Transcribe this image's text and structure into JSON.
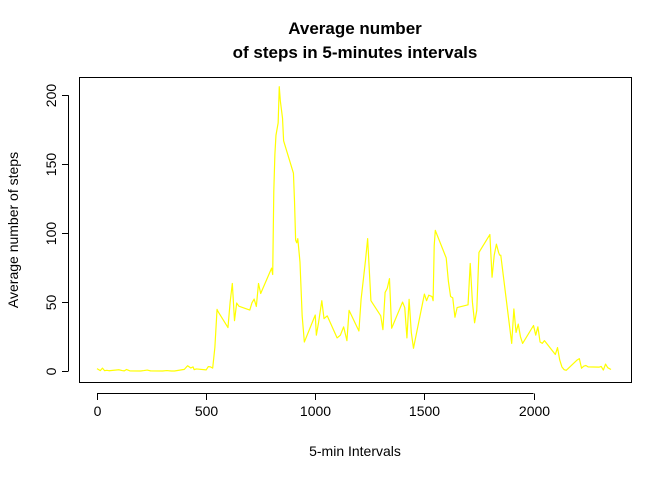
{
  "chart_data": {
    "type": "line",
    "title_line1": "Average number",
    "title_line2": "of steps in 5-minutes intervals",
    "xlabel": "5-min Intervals",
    "ylabel": "Average number of steps",
    "xlim": [
      0,
      2355
    ],
    "ylim": [
      0,
      206
    ],
    "x_ticks": [
      0,
      500,
      1000,
      1500,
      2000
    ],
    "x_tick_labels": [
      "0",
      "500",
      "1000",
      "1500",
      "2000"
    ],
    "y_ticks": [
      0,
      50,
      100,
      150,
      200
    ],
    "y_tick_labels": [
      "0",
      "50",
      "100",
      "150",
      "200"
    ],
    "grid": false,
    "series": [
      {
        "color": "#ffff00",
        "x": [
          0,
          15,
          25,
          35,
          45,
          55,
          100,
          115,
          125,
          135,
          150,
          200,
          215,
          230,
          245,
          300,
          320,
          340,
          355,
          400,
          415,
          430,
          440,
          445,
          455,
          500,
          510,
          520,
          530,
          540,
          550,
          555,
          600,
          610,
          620,
          630,
          640,
          650,
          700,
          710,
          720,
          730,
          740,
          750,
          800,
          805,
          810,
          815,
          820,
          830,
          835,
          840,
          850,
          855,
          900,
          905,
          910,
          915,
          920,
          930,
          940,
          950,
          1000,
          1005,
          1015,
          1030,
          1040,
          1055,
          1100,
          1115,
          1130,
          1145,
          1155,
          1200,
          1210,
          1215,
          1220,
          1230,
          1240,
          1255,
          1300,
          1310,
          1320,
          1330,
          1340,
          1350,
          1400,
          1410,
          1420,
          1430,
          1440,
          1450,
          1500,
          1510,
          1520,
          1535,
          1540,
          1545,
          1550,
          1600,
          1610,
          1620,
          1630,
          1640,
          1650,
          1700,
          1710,
          1720,
          1730,
          1740,
          1750,
          1800,
          1810,
          1820,
          1830,
          1840,
          1845,
          1850,
          1900,
          1910,
          1920,
          1930,
          1940,
          1950,
          2000,
          2010,
          2020,
          2030,
          2040,
          2050,
          2100,
          2110,
          2120,
          2130,
          2140,
          2150,
          2200,
          2210,
          2220,
          2230,
          2240,
          2250,
          2300,
          2310,
          2320,
          2330,
          2340,
          2355
        ],
        "y": [
          1.7,
          0.3,
          2.1,
          0.2,
          0.5,
          0.2,
          0.9,
          0.3,
          0.1,
          1.1,
          0.1,
          0.0,
          0.3,
          0.7,
          0.1,
          0.0,
          0.3,
          0.0,
          0.0,
          1.2,
          3.8,
          2.2,
          3.0,
          1.0,
          1.5,
          0.8,
          3.2,
          3.0,
          2.1,
          17.0,
          44.7,
          43.0,
          31.5,
          50.0,
          63.5,
          36.5,
          49.3,
          47.0,
          44.2,
          49.5,
          52.2,
          46.8,
          63.5,
          56.2,
          74.6,
          70.0,
          130.0,
          157.0,
          171.0,
          180.0,
          206.2,
          195.9,
          183.4,
          167.0,
          143.5,
          123.0,
          95.0,
          93.0,
          96.0,
          79.0,
          40.0,
          21.0,
          40.6,
          26.0,
          35.0,
          51.0,
          38.0,
          40.0,
          24.0,
          26.0,
          32.0,
          22.0,
          44.0,
          29.0,
          52.0,
          59.0,
          66.0,
          80.0,
          96.0,
          51.0,
          40.0,
          30.0,
          57.0,
          60.0,
          67.0,
          31.0,
          50.0,
          46.0,
          24.0,
          52.0,
          28.0,
          16.5,
          55.8,
          51.0,
          55.0,
          54.0,
          51.0,
          91.0,
          102.0,
          82.0,
          65.0,
          54.0,
          53.0,
          39.0,
          46.0,
          48.0,
          78.0,
          50.0,
          35.0,
          44.0,
          86.0,
          99.0,
          68.0,
          84.0,
          92.0,
          86.0,
          84.0,
          84.0,
          20.0,
          45.0,
          28.0,
          34.0,
          25.0,
          20.0,
          33.0,
          26.0,
          32.0,
          21.0,
          20.0,
          22.0,
          12.0,
          17.0,
          8.0,
          3.0,
          1.0,
          0.5,
          8.0,
          9.0,
          2.0,
          3.5,
          4.0,
          3.0,
          2.8,
          3.3,
          0.7,
          5.0,
          2.4,
          1.1
        ]
      }
    ]
  }
}
